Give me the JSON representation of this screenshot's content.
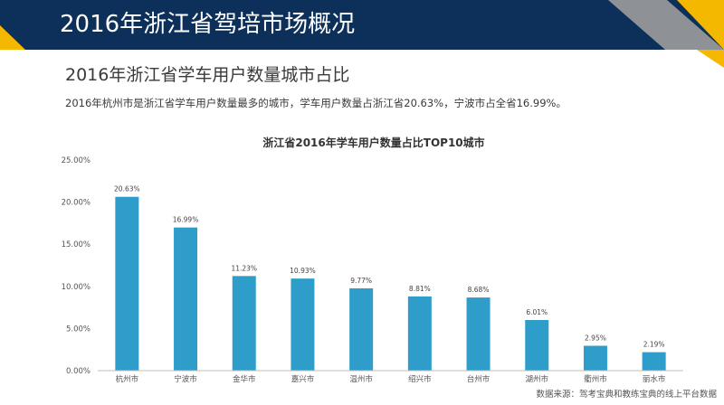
{
  "header": {
    "title": "2016年浙江省驾培市场概况"
  },
  "section": {
    "title": "2016年浙江省学车用户数量城市占比",
    "description": "2016年杭州市是浙江省学车用户数量最多的城市，学车用户数量占浙江省20.63%，宁波市占全省16.99%。"
  },
  "colors": {
    "header_bg": "#0c3059",
    "accent_yellow": "#f5b800",
    "accent_gray": "#8e9296",
    "bar": "#2e9dc9"
  },
  "chart_data": {
    "type": "bar",
    "title": "浙江省2016年学车用户数量占比TOP10城市",
    "categories": [
      "杭州市",
      "宁波市",
      "金华市",
      "嘉兴市",
      "温州市",
      "绍兴市",
      "台州市",
      "湖州市",
      "衢州市",
      "丽水市"
    ],
    "values": [
      20.63,
      16.99,
      11.23,
      10.93,
      9.77,
      8.81,
      8.68,
      6.01,
      2.95,
      2.19
    ],
    "value_labels": [
      "20.63%",
      "16.99%",
      "11.23%",
      "10.93%",
      "9.77%",
      "8.81%",
      "8.68%",
      "6.01%",
      "2.95%",
      "2.19%"
    ],
    "y_ticks": [
      0,
      5,
      10,
      15,
      20,
      25
    ],
    "y_tick_labels": [
      "0.00%",
      "5.00%",
      "10.00%",
      "15.00%",
      "20.00%",
      "25.00%"
    ],
    "ylim": [
      0,
      25
    ],
    "xlabel": "",
    "ylabel": "",
    "grid": false,
    "legend": "none"
  },
  "footer": {
    "source": "数据来源：驾考宝典和教练宝典的线上平台数据"
  }
}
